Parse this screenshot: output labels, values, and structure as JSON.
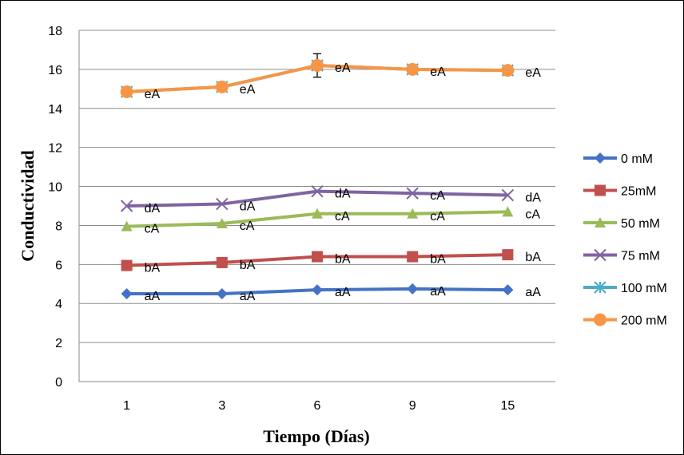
{
  "chart_data": {
    "type": "line",
    "xlabel": "Tiempo (Días)",
    "ylabel": "Conductividad",
    "categories": [
      "1",
      "3",
      "6",
      "9",
      "15"
    ],
    "ylim": [
      0,
      18
    ],
    "yticks": [
      "0",
      "2",
      "4",
      "6",
      "8",
      "10",
      "12",
      "14",
      "16",
      "18"
    ],
    "grid": true,
    "legend_position": "right",
    "series": [
      {
        "name": "0 mM",
        "values": [
          4.5,
          4.5,
          4.7,
          4.75,
          4.7
        ],
        "labels": [
          "aA",
          "aA",
          "aA",
          "aA",
          "aA"
        ],
        "color": "#4472C4",
        "marker": "diamond"
      },
      {
        "name": "25mM",
        "values": [
          5.95,
          6.1,
          6.4,
          6.4,
          6.5
        ],
        "labels": [
          "bA",
          "bA",
          "bA",
          "bA",
          "bA"
        ],
        "color": "#C0504D",
        "marker": "square"
      },
      {
        "name": "50 mM",
        "values": [
          7.95,
          8.1,
          8.6,
          8.6,
          8.7
        ],
        "labels": [
          "cA",
          "cA",
          "cA",
          "cA",
          "cA"
        ],
        "color": "#9BBB59",
        "marker": "triangle"
      },
      {
        "name": "75 mM",
        "values": [
          9.0,
          9.1,
          9.75,
          9.65,
          9.55
        ],
        "labels": [
          "dA",
          "dA",
          "dA",
          "cA",
          "dA"
        ],
        "color": "#8064A2",
        "marker": "x"
      },
      {
        "name": "100 mM",
        "values": [
          14.85,
          15.1,
          16.2,
          16.0,
          15.95
        ],
        "labels": [
          "",
          "",
          "",
          "",
          ""
        ],
        "color": "#4BACC6",
        "marker": "star"
      },
      {
        "name": "200 mM",
        "values": [
          14.85,
          15.1,
          16.2,
          16.0,
          15.95
        ],
        "labels": [
          "eA",
          "eA",
          "eA",
          "eA",
          "eA"
        ],
        "color": "#F79646",
        "marker": "circle"
      }
    ],
    "error_bars": [
      {
        "series": "200 mM",
        "category": "6",
        "error": 0.6
      }
    ]
  }
}
